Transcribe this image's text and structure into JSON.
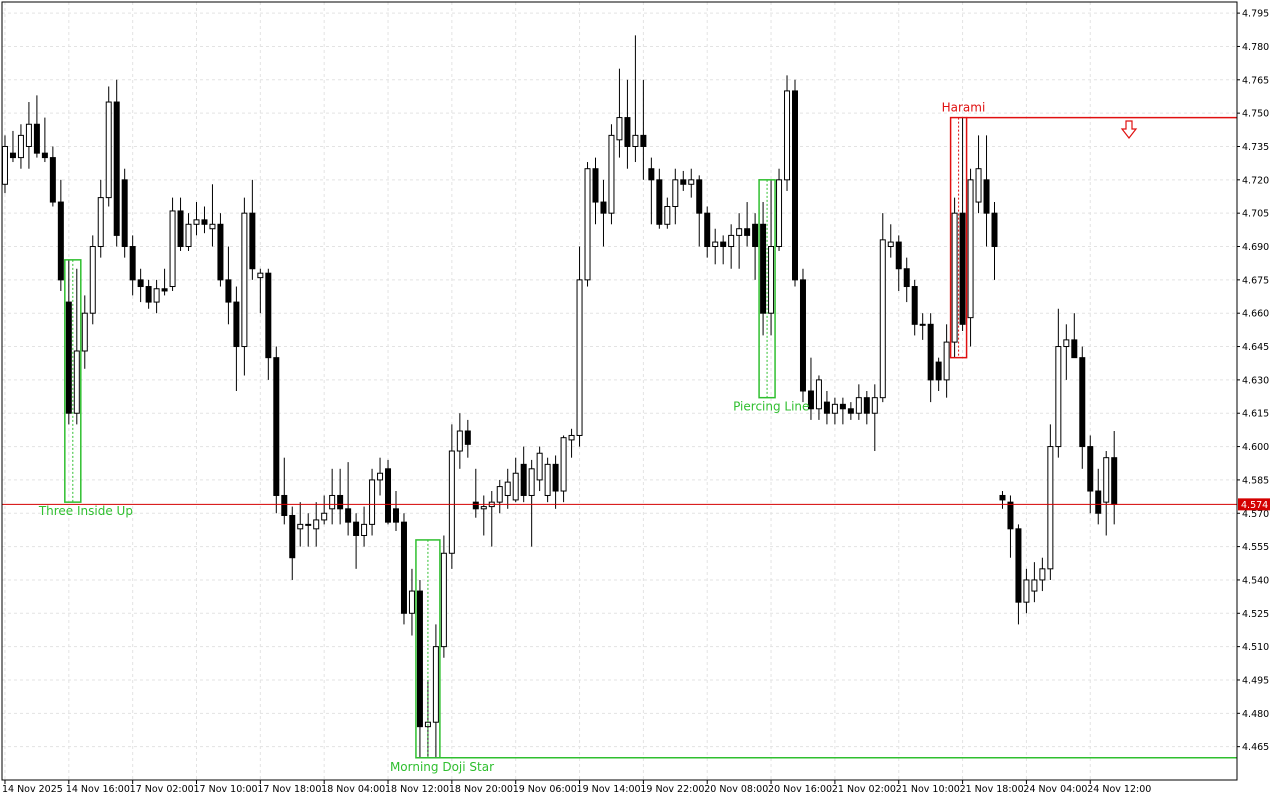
{
  "chart_data": {
    "type": "candlestick",
    "bull_color": "#ffffff",
    "bear_color": "#000000",
    "wick_color": "#000000",
    "grid": true,
    "ylim": [
      4.45,
      4.8
    ],
    "yticks": [
      4.465,
      {
        "value": 4.48,
        "label": "4.480"
      },
      4.495,
      {
        "value": 4.51,
        "label": "4.510"
      },
      4.525,
      {
        "value": 4.54,
        "label": "4.540"
      },
      4.555,
      {
        "value": 4.57,
        "label": "4.570"
      },
      4.585,
      {
        "value": 4.6,
        "label": "4.600"
      },
      4.615,
      {
        "value": 4.63,
        "label": "4.630"
      },
      4.645,
      {
        "value": 4.66,
        "label": "4.660"
      },
      4.675,
      {
        "value": 4.69,
        "label": "4.690"
      },
      4.705,
      {
        "value": 4.72,
        "label": "4.720"
      },
      4.735,
      {
        "value": 4.75,
        "label": "4.750"
      },
      4.765,
      {
        "value": 4.78,
        "label": "4.780"
      },
      4.795
    ],
    "xticks": [
      {
        "value": 1,
        "label": "14 Nov 2025"
      },
      {
        "value": 9,
        "label": "14 Nov 16:00"
      },
      {
        "value": 17,
        "label": "17 Nov 02:00"
      },
      {
        "value": 25,
        "label": "17 Nov 10:00"
      },
      {
        "value": 33,
        "label": "17 Nov 18:00"
      },
      {
        "value": 41,
        "label": "18 Nov 04:00"
      },
      {
        "value": 49,
        "label": "18 Nov 12:00"
      },
      {
        "value": 57,
        "label": "18 Nov 20:00"
      },
      {
        "value": 65,
        "label": "19 Nov 06:00"
      },
      {
        "value": 73,
        "label": "19 Nov 14:00"
      },
      {
        "value": 81,
        "label": "19 Nov 22:00"
      },
      {
        "value": 89,
        "label": "20 Nov 08:00"
      },
      {
        "value": 97,
        "label": "20 Nov 16:00"
      },
      {
        "value": 105,
        "label": "21 Nov 02:00"
      },
      {
        "value": 113,
        "label": "21 Nov 10:00"
      },
      {
        "value": 121,
        "label": "21 Nov 18:00"
      },
      {
        "value": 129,
        "label": "24 Nov 04:00"
      },
      {
        "value": 137,
        "label": "24 Nov 12:00"
      }
    ],
    "current_price": 4.574,
    "current_price_color": "#d40000",
    "ohlc": [
      [
        4.745,
        4.748,
        4.712,
        4.718
      ],
      [
        4.718,
        4.74,
        4.714,
        4.735
      ],
      [
        4.732,
        4.742,
        4.728,
        4.73
      ],
      [
        4.73,
        4.745,
        4.725,
        4.74
      ],
      [
        4.735,
        4.755,
        4.725,
        4.745
      ],
      [
        4.745,
        4.758,
        4.73,
        4.732
      ],
      [
        4.732,
        4.748,
        4.728,
        4.73
      ],
      [
        4.73,
        4.735,
        4.708,
        4.71
      ],
      [
        4.71,
        4.72,
        4.67,
        4.675
      ],
      [
        4.665,
        4.684,
        4.61,
        4.615
      ],
      [
        4.615,
        4.68,
        4.61,
        4.643
      ],
      [
        4.643,
        4.668,
        4.635,
        4.66
      ],
      [
        4.66,
        4.695,
        4.655,
        4.69
      ],
      [
        4.69,
        4.72,
        4.685,
        4.712
      ],
      [
        4.712,
        4.762,
        4.708,
        4.755
      ],
      [
        4.755,
        4.765,
        4.69,
        4.695
      ],
      [
        4.72,
        4.725,
        4.685,
        4.69
      ],
      [
        4.69,
        4.695,
        4.668,
        4.675
      ],
      [
        4.675,
        4.68,
        4.665,
        4.672
      ],
      [
        4.672,
        4.675,
        4.662,
        4.665
      ],
      [
        4.665,
        4.675,
        4.66,
        4.671
      ],
      [
        4.671,
        4.68,
        4.668,
        4.67
      ],
      [
        4.672,
        4.712,
        4.67,
        4.706
      ],
      [
        4.706,
        4.712,
        4.688,
        4.69
      ],
      [
        4.69,
        4.705,
        4.688,
        4.7
      ],
      [
        4.7,
        4.71,
        4.695,
        4.702
      ],
      [
        4.702,
        4.708,
        4.696,
        4.7
      ],
      [
        4.698,
        4.718,
        4.69,
        4.7
      ],
      [
        4.7,
        4.705,
        4.672,
        4.675
      ],
      [
        4.675,
        4.69,
        4.655,
        4.665
      ],
      [
        4.665,
        4.672,
        4.625,
        4.645
      ],
      [
        4.645,
        4.712,
        4.632,
        4.705
      ],
      [
        4.705,
        4.72,
        4.675,
        4.68
      ],
      [
        4.676,
        4.68,
        4.66,
        4.678
      ],
      [
        4.678,
        4.68,
        4.63,
        4.64
      ],
      [
        4.64,
        4.645,
        4.57,
        4.578
      ],
      [
        4.578,
        4.595,
        4.565,
        4.569
      ],
      [
        4.569,
        4.573,
        4.54,
        4.55
      ],
      [
        4.563,
        4.575,
        4.555,
        4.565
      ],
      [
        4.565,
        4.57,
        4.555,
        4.565
      ],
      [
        4.563,
        4.575,
        4.555,
        4.567
      ],
      [
        4.567,
        4.578,
        4.565,
        4.57
      ],
      [
        4.572,
        4.59,
        4.565,
        4.578
      ],
      [
        4.578,
        4.59,
        4.565,
        4.572
      ],
      [
        4.572,
        4.593,
        4.56,
        4.566
      ],
      [
        4.566,
        4.57,
        4.545,
        4.56
      ],
      [
        4.56,
        4.573,
        4.555,
        4.565
      ],
      [
        4.565,
        4.59,
        4.56,
        4.585
      ],
      [
        4.585,
        4.595,
        4.578,
        4.588
      ],
      [
        4.59,
        4.594,
        4.565,
        4.566
      ],
      [
        4.572,
        4.58,
        4.562,
        4.566
      ],
      [
        4.566,
        4.57,
        4.52,
        4.525
      ],
      [
        4.525,
        4.545,
        4.515,
        4.535
      ],
      [
        4.535,
        4.54,
        4.46,
        4.474
      ],
      [
        4.474,
        4.495,
        4.46,
        4.476
      ],
      [
        4.476,
        4.52,
        4.46,
        4.51
      ],
      [
        4.51,
        4.56,
        4.505,
        4.552
      ],
      [
        4.552,
        4.61,
        4.545,
        4.598
      ],
      [
        4.598,
        4.615,
        4.59,
        4.607
      ],
      [
        4.607,
        4.612,
        4.595,
        4.601
      ],
      [
        4.575,
        4.59,
        4.568,
        4.572
      ],
      [
        4.572,
        4.578,
        4.56,
        4.573
      ],
      [
        4.573,
        4.58,
        4.555,
        4.575
      ],
      [
        4.575,
        4.585,
        4.57,
        4.582
      ],
      [
        4.578,
        4.59,
        4.572,
        4.584
      ],
      [
        4.576,
        4.595,
        4.575,
        4.588
      ],
      [
        4.592,
        4.6,
        4.575,
        4.578
      ],
      [
        4.578,
        4.594,
        4.555,
        4.59
      ],
      [
        4.585,
        4.6,
        4.58,
        4.597
      ],
      [
        4.578,
        4.595,
        4.575,
        4.592
      ],
      [
        4.592,
        4.596,
        4.572,
        4.58
      ],
      [
        4.58,
        4.605,
        4.575,
        4.604
      ],
      [
        4.603,
        4.608,
        4.595,
        4.605
      ],
      [
        4.605,
        4.69,
        4.6,
        4.675
      ],
      [
        4.675,
        4.728,
        4.672,
        4.725
      ],
      [
        4.725,
        4.73,
        4.7,
        4.71
      ],
      [
        4.71,
        4.72,
        4.69,
        4.705
      ],
      [
        4.705,
        4.745,
        4.7,
        4.74
      ],
      [
        4.738,
        4.77,
        4.73,
        4.748
      ],
      [
        4.748,
        4.765,
        4.725,
        4.735
      ],
      [
        4.735,
        4.785,
        4.728,
        4.74
      ],
      [
        4.74,
        4.765,
        4.72,
        4.735
      ],
      [
        4.725,
        4.73,
        4.7,
        4.72
      ],
      [
        4.72,
        4.725,
        4.698,
        4.7
      ],
      [
        4.7,
        4.712,
        4.698,
        4.708
      ],
      [
        4.708,
        4.725,
        4.7,
        4.72
      ],
      [
        4.72,
        4.724,
        4.715,
        4.718
      ],
      [
        4.718,
        4.725,
        4.712,
        4.72
      ],
      [
        4.72,
        4.722,
        4.69,
        4.705
      ],
      [
        4.705,
        4.708,
        4.685,
        4.69
      ],
      [
        4.69,
        4.698,
        4.682,
        4.692
      ],
      [
        4.692,
        4.695,
        4.682,
        4.69
      ],
      [
        4.69,
        4.7,
        4.68,
        4.695
      ],
      [
        4.695,
        4.705,
        4.68,
        4.698
      ],
      [
        4.698,
        4.71,
        4.69,
        4.695
      ],
      [
        4.7,
        4.705,
        4.675,
        4.69
      ],
      [
        4.7,
        4.71,
        4.65,
        4.66
      ],
      [
        4.66,
        4.72,
        4.65,
        4.69
      ],
      [
        4.69,
        4.725,
        4.688,
        4.72
      ],
      [
        4.72,
        4.767,
        4.715,
        4.76
      ],
      [
        4.76,
        4.765,
        4.672,
        4.675
      ],
      [
        4.675,
        4.68,
        4.62,
        4.625
      ],
      [
        4.625,
        4.64,
        4.612,
        4.617
      ],
      [
        4.617,
        4.632,
        4.612,
        4.63
      ],
      [
        4.62,
        4.625,
        4.61,
        4.615
      ],
      [
        4.615,
        4.622,
        4.61,
        4.619
      ],
      [
        4.619,
        4.622,
        4.61,
        4.617
      ],
      [
        4.617,
        4.62,
        4.612,
        4.615
      ],
      [
        4.615,
        4.628,
        4.612,
        4.622
      ],
      [
        4.622,
        4.625,
        4.61,
        4.615
      ],
      [
        4.615,
        4.628,
        4.598,
        4.622
      ],
      [
        4.622,
        4.705,
        4.62,
        4.693
      ],
      [
        4.69,
        4.7,
        4.685,
        4.692
      ],
      [
        4.692,
        4.695,
        4.67,
        4.68
      ],
      [
        4.68,
        4.685,
        4.665,
        4.672
      ],
      [
        4.672,
        4.675,
        4.65,
        4.655
      ],
      [
        4.655,
        4.66,
        4.648,
        4.655
      ],
      [
        4.655,
        4.66,
        4.62,
        4.63
      ],
      [
        4.638,
        4.64,
        4.625,
        4.63
      ],
      [
        4.63,
        4.655,
        4.622,
        4.647
      ],
      [
        4.647,
        4.712,
        4.64,
        4.705
      ],
      [
        4.705,
        4.748,
        4.652,
        4.655
      ],
      [
        4.658,
        4.725,
        4.645,
        4.72
      ],
      [
        4.71,
        4.74,
        4.705,
        4.725
      ],
      [
        4.72,
        4.74,
        4.69,
        4.705
      ],
      [
        4.705,
        4.71,
        4.675,
        4.69
      ],
      [
        4.578,
        4.58,
        4.572,
        4.576
      ],
      [
        4.575,
        4.578,
        4.55,
        4.563
      ],
      [
        4.563,
        4.565,
        4.52,
        4.53
      ],
      [
        4.53,
        4.545,
        4.525,
        4.54
      ],
      [
        4.535,
        4.548,
        4.53,
        4.54
      ],
      [
        4.54,
        4.55,
        4.535,
        4.545
      ],
      [
        4.545,
        4.61,
        4.54,
        4.6
      ],
      [
        4.6,
        4.662,
        4.595,
        4.645
      ],
      [
        4.645,
        4.655,
        4.63,
        4.648
      ],
      [
        4.648,
        4.66,
        4.64,
        4.64
      ],
      [
        4.64,
        4.645,
        4.59,
        4.6
      ],
      [
        4.6,
        4.605,
        4.57,
        4.58
      ],
      [
        4.58,
        4.59,
        4.565,
        4.57
      ],
      [
        4.575,
        4.598,
        4.56,
        4.595
      ],
      [
        4.595,
        4.607,
        4.565,
        4.574
      ]
    ],
    "patterns": [
      {
        "label": "Three Inside Up",
        "color": "#2fbf2f",
        "direction": "up",
        "candles": [
          9,
          10
        ],
        "box": [
          4.575,
          4.684
        ]
      },
      {
        "label": "Morning Doji Star",
        "color": "#2fbf2f",
        "direction": "up",
        "candles": [
          53,
          55
        ],
        "box": [
          4.46,
          4.558
        ],
        "level": 4.46
      },
      {
        "label": "Piercing Line",
        "color": "#2fbf2f",
        "direction": "up",
        "candles": [
          96,
          97
        ],
        "box": [
          4.622,
          4.72
        ]
      },
      {
        "label": "Harami",
        "color": "#e01010",
        "direction": "down",
        "candles": [
          120,
          121
        ],
        "box": [
          4.64,
          4.748
        ],
        "level": 4.748
      }
    ]
  }
}
